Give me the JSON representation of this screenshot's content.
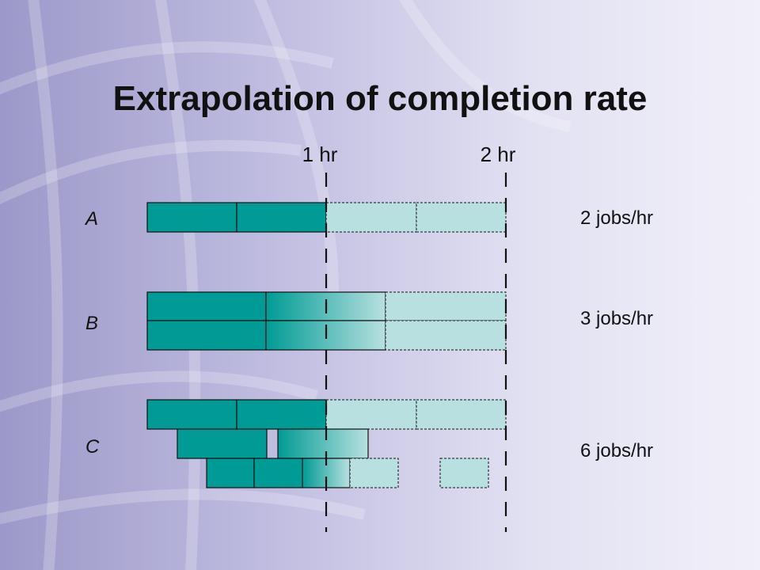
{
  "title": "Extrapolation of completion rate",
  "ticks": [
    "1 hr",
    "2 hr"
  ],
  "rows": [
    {
      "label": "A",
      "rate": "2 jobs/hr"
    },
    {
      "label": "B",
      "rate": "3 jobs/hr"
    },
    {
      "label": "C",
      "rate": "6 jobs/hr"
    }
  ],
  "colors": {
    "done": "#009b94",
    "pending": "#b8e0e0",
    "outline": "#111111"
  }
}
